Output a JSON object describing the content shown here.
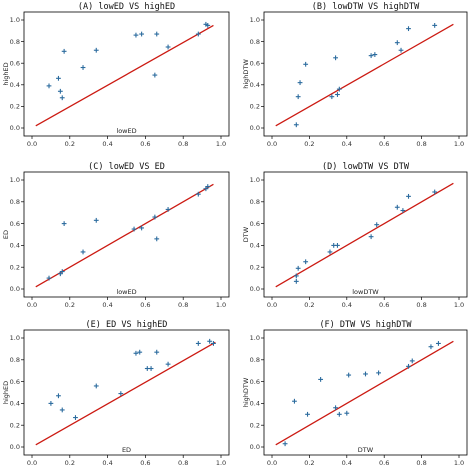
{
  "chart_data": [
    {
      "type": "scatter",
      "title": "(A) lowED VS highED",
      "xlabel": "lowED",
      "ylabel": "highED",
      "xlim": [
        0,
        1
      ],
      "ylim": [
        0,
        1
      ],
      "xticks": [
        "0.0",
        "0.2",
        "0.4",
        "0.6",
        "0.8",
        "1.0"
      ],
      "yticks": [
        "0.0",
        "0.2",
        "0.4",
        "0.6",
        "0.8",
        "1.0"
      ],
      "x": [
        0.09,
        0.14,
        0.15,
        0.16,
        0.17,
        0.27,
        0.34,
        0.55,
        0.58,
        0.65,
        0.66,
        0.72,
        0.88,
        0.92,
        0.93
      ],
      "y": [
        0.39,
        0.46,
        0.34,
        0.28,
        0.71,
        0.56,
        0.72,
        0.86,
        0.87,
        0.49,
        0.87,
        0.75,
        0.87,
        0.96,
        0.95
      ],
      "reference_line": {
        "x": [
          0.02,
          0.96
        ],
        "y": [
          0.02,
          0.95
        ]
      }
    },
    {
      "type": "scatter",
      "title": "(B) lowDTW VS highDTW",
      "xlabel": "",
      "ylabel": "highDTW",
      "xlim": [
        0,
        1
      ],
      "ylim": [
        0,
        1
      ],
      "xticks": [
        "0.0",
        "0.2",
        "0.4",
        "0.6",
        "0.8",
        "1.0"
      ],
      "yticks": [
        "0.0",
        "0.2",
        "0.4",
        "0.6",
        "0.8",
        "1.0"
      ],
      "x": [
        0.13,
        0.14,
        0.15,
        0.18,
        0.32,
        0.34,
        0.35,
        0.36,
        0.53,
        0.55,
        0.67,
        0.69,
        0.73,
        0.87
      ],
      "y": [
        0.03,
        0.29,
        0.42,
        0.59,
        0.29,
        0.65,
        0.31,
        0.36,
        0.67,
        0.68,
        0.79,
        0.72,
        0.92,
        0.95
      ],
      "reference_line": {
        "x": [
          0.02,
          0.97
        ],
        "y": [
          0.02,
          0.96
        ]
      }
    },
    {
      "type": "scatter",
      "title": "(C) lowED VS ED",
      "xlabel": "lowED",
      "ylabel": "ED",
      "xlim": [
        0,
        1
      ],
      "ylim": [
        0,
        1
      ],
      "xticks": [
        "0.0",
        "0.2",
        "0.4",
        "0.6",
        "0.8",
        "1.0"
      ],
      "yticks": [
        "0.0",
        "0.2",
        "0.4",
        "0.6",
        "0.8",
        "1.0"
      ],
      "x": [
        0.09,
        0.15,
        0.16,
        0.17,
        0.27,
        0.34,
        0.54,
        0.58,
        0.65,
        0.66,
        0.72,
        0.88,
        0.93,
        0.92
      ],
      "y": [
        0.1,
        0.14,
        0.16,
        0.6,
        0.34,
        0.63,
        0.55,
        0.56,
        0.66,
        0.46,
        0.73,
        0.87,
        0.94,
        0.92
      ],
      "reference_line": {
        "x": [
          0.02,
          0.96
        ],
        "y": [
          0.02,
          0.96
        ]
      }
    },
    {
      "type": "scatter",
      "title": "(D) lowDTW VS DTW",
      "xlabel": "lowDTW",
      "ylabel": "DTW",
      "xlim": [
        0,
        1
      ],
      "ylim": [
        0,
        1
      ],
      "xticks": [
        "0.0",
        "0.2",
        "0.4",
        "0.6",
        "0.8",
        "1.0"
      ],
      "yticks": [
        "0.0",
        "0.2",
        "0.4",
        "0.6",
        "0.8",
        "1.0"
      ],
      "x": [
        0.13,
        0.13,
        0.14,
        0.18,
        0.31,
        0.33,
        0.35,
        0.53,
        0.56,
        0.67,
        0.7,
        0.73,
        0.87
      ],
      "y": [
        0.07,
        0.12,
        0.19,
        0.25,
        0.34,
        0.4,
        0.4,
        0.48,
        0.59,
        0.75,
        0.72,
        0.85,
        0.89
      ],
      "reference_line": {
        "x": [
          0.02,
          0.97
        ],
        "y": [
          0.02,
          0.97
        ]
      }
    },
    {
      "type": "scatter",
      "title": "(E) ED VS highED",
      "xlabel": "ED",
      "ylabel": "highED",
      "xlim": [
        0,
        1
      ],
      "ylim": [
        0,
        1
      ],
      "xticks": [
        "0.0",
        "0.2",
        "0.4",
        "0.6",
        "0.8",
        "1.0"
      ],
      "yticks": [
        "0.0",
        "0.2",
        "0.4",
        "0.6",
        "0.8",
        "1.0"
      ],
      "x": [
        0.1,
        0.14,
        0.16,
        0.23,
        0.34,
        0.47,
        0.55,
        0.57,
        0.61,
        0.63,
        0.66,
        0.72,
        0.88,
        0.94,
        0.96
      ],
      "y": [
        0.4,
        0.47,
        0.34,
        0.27,
        0.56,
        0.49,
        0.86,
        0.87,
        0.72,
        0.72,
        0.87,
        0.76,
        0.95,
        0.97,
        0.95
      ],
      "reference_line": {
        "x": [
          0.02,
          0.97
        ],
        "y": [
          0.02,
          0.96
        ]
      }
    },
    {
      "type": "scatter",
      "title": "(F) DTW VS highDTW",
      "xlabel": "DTW",
      "ylabel": "highDTW",
      "xlim": [
        0,
        1
      ],
      "ylim": [
        0,
        1
      ],
      "xticks": [
        "0.0",
        "0.2",
        "0.4",
        "0.6",
        "0.8",
        "1.0"
      ],
      "yticks": [
        "0.0",
        "0.2",
        "0.4",
        "0.6",
        "0.8",
        "1.0"
      ],
      "x": [
        0.07,
        0.12,
        0.19,
        0.26,
        0.34,
        0.36,
        0.4,
        0.41,
        0.5,
        0.57,
        0.73,
        0.75,
        0.85,
        0.89
      ],
      "y": [
        0.03,
        0.42,
        0.3,
        0.62,
        0.36,
        0.3,
        0.31,
        0.66,
        0.67,
        0.68,
        0.74,
        0.79,
        0.92,
        0.95
      ],
      "reference_line": {
        "x": [
          0.02,
          0.97
        ],
        "y": [
          0.02,
          0.97
        ]
      }
    }
  ],
  "colors": {
    "points": "#2b6b9e",
    "reference_line": "#cc1a12",
    "axes": "#000000"
  }
}
